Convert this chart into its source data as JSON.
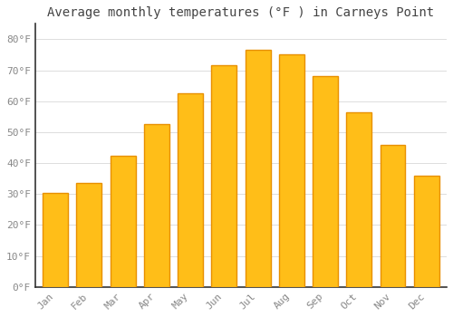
{
  "title": "Average monthly temperatures (°F ) in Carneys Point",
  "months": [
    "Jan",
    "Feb",
    "Mar",
    "Apr",
    "May",
    "Jun",
    "Jul",
    "Aug",
    "Sep",
    "Oct",
    "Nov",
    "Dec"
  ],
  "values": [
    30.5,
    33.5,
    42.5,
    52.5,
    62.5,
    71.5,
    76.5,
    75.0,
    68.0,
    56.5,
    46.0,
    36.0
  ],
  "bar_color": "#FFBE18",
  "bar_edge_color": "#E89000",
  "background_color": "#FFFFFF",
  "grid_color": "#DDDDDD",
  "ytick_labels": [
    "0°F",
    "10°F",
    "20°F",
    "30°F",
    "40°F",
    "50°F",
    "60°F",
    "70°F",
    "80°F"
  ],
  "ytick_values": [
    0,
    10,
    20,
    30,
    40,
    50,
    60,
    70,
    80
  ],
  "ylim": [
    0,
    85
  ],
  "title_fontsize": 10,
  "tick_fontsize": 8,
  "tick_color": "#888888",
  "spine_color": "#333333",
  "font_family": "monospace",
  "bar_width": 0.75
}
